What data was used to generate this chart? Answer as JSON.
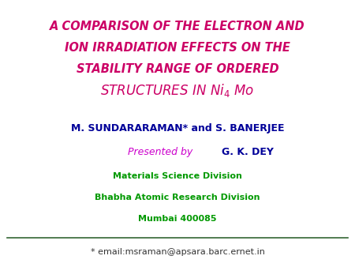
{
  "title_line1": "A COMPARISON OF THE ELECTRON AND",
  "title_line2": "ION IRRADIATION EFFECTS ON THE",
  "title_line3": "STABILITY RANGE OF ORDERED",
  "title_line4_pre": "STRUCTURES IN Ni",
  "title_line4_sub": "4",
  "title_line4_post": " Mo",
  "title_color": "#cc0066",
  "author_line": "M. SUNDARARAMAN* and S. BANERJEE",
  "author_color": "#000099",
  "presenter_pre": "Presented by  ",
  "presenter_name": "G. K. DEY",
  "presenter_pre_color": "#cc00cc",
  "presenter_name_color": "#000099",
  "division1": "Materials Science Division",
  "division2": "Bhabha Atomic Research Division",
  "city": "Mumbai 400085",
  "division_color": "#009900",
  "footer": "* email:msraman@apsara.barc.ernet.in",
  "footer_color": "#333333",
  "line_color": "#336633",
  "bg_color": "#ffffff",
  "title_fontsize": 10.5,
  "title4_fontsize": 12,
  "author_fontsize": 9,
  "presenter_fontsize": 9,
  "division_fontsize": 8,
  "footer_fontsize": 8
}
